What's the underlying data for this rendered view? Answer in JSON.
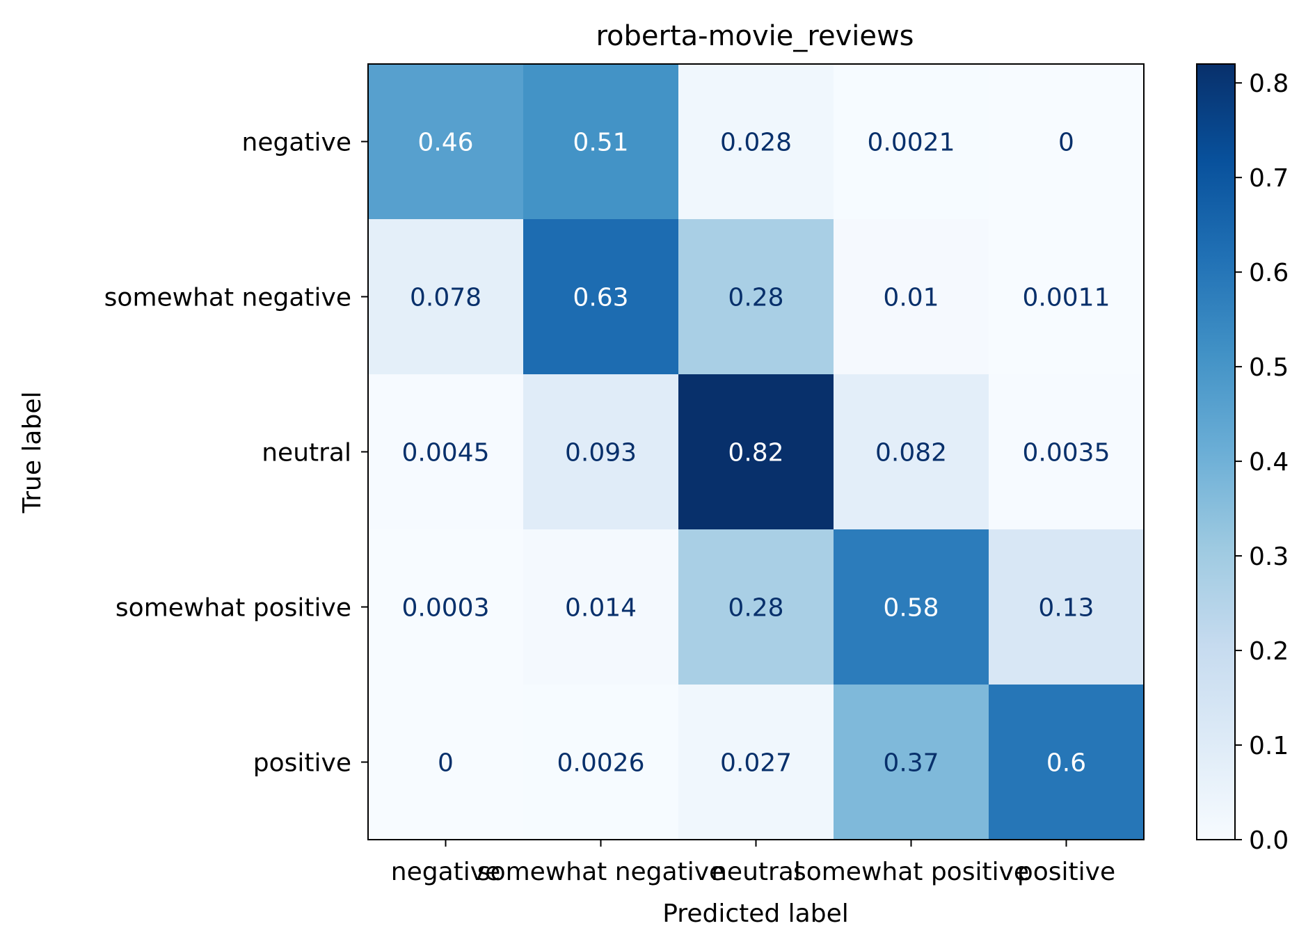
{
  "chart_data": {
    "type": "heatmap",
    "title": "roberta-movie_reviews",
    "xlabel": "Predicted label",
    "ylabel": "True label",
    "x_categories": [
      "negative",
      "somewhat negative",
      "neutral",
      "somewhat positive",
      "positive"
    ],
    "y_categories": [
      "negative",
      "somewhat negative",
      "neutral",
      "somewhat positive",
      "positive"
    ],
    "cells": [
      [
        "0.46",
        "0.51",
        "0.028",
        "0.0021",
        "0"
      ],
      [
        "0.078",
        "0.63",
        "0.28",
        "0.01",
        "0.0011"
      ],
      [
        "0.0045",
        "0.093",
        "0.82",
        "0.082",
        "0.0035"
      ],
      [
        "0.0003",
        "0.014",
        "0.28",
        "0.58",
        "0.13"
      ],
      [
        "0",
        "0.0026",
        "0.027",
        "0.37",
        "0.6"
      ]
    ],
    "colorbar": {
      "colormap": "Blues",
      "min": 0.0,
      "max": 0.82,
      "ticks": [
        "0.0",
        "0.1",
        "0.2",
        "0.3",
        "0.4",
        "0.5",
        "0.6",
        "0.7",
        "0.8"
      ]
    },
    "text_colors": {
      "light": "#ffffff",
      "dark": "#08306b"
    }
  }
}
